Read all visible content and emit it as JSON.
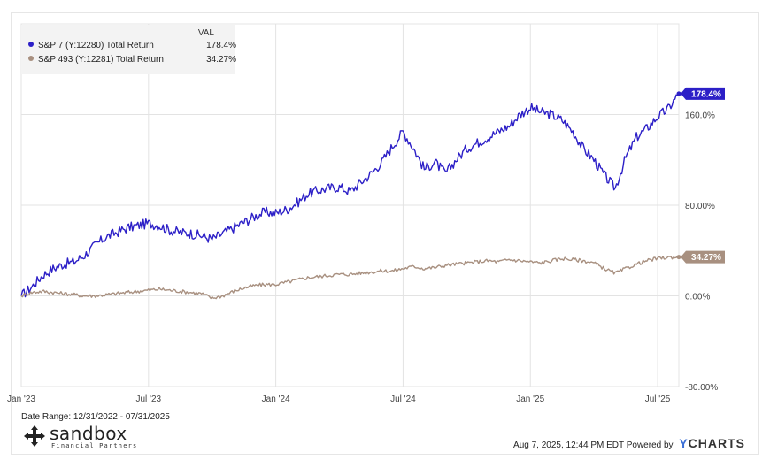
{
  "chart_data": {
    "type": "line",
    "x_ticks": [
      "Jan '23",
      "Jul '23",
      "Jan '24",
      "Jul '24",
      "Jan '25",
      "Jul '25"
    ],
    "y_ticks": [
      "160.0%",
      "80.00%",
      "0.00%",
      "-80.00%"
    ],
    "y_tick_values": [
      160,
      80,
      0,
      -80
    ],
    "ylim": [
      -80,
      240
    ],
    "x_range_months": [
      0,
      31
    ],
    "grid": true,
    "legend_position": "top-left",
    "legend_header": "VAL",
    "series": [
      {
        "name": "S&P 7 (Y:12280) Total Return",
        "color": "#2c1fc7",
        "end_label": "178.4%",
        "points": [
          [
            0,
            0
          ],
          [
            0.5,
            8
          ],
          [
            1,
            18
          ],
          [
            1.5,
            24
          ],
          [
            2,
            28
          ],
          [
            2.5,
            30
          ],
          [
            3,
            36
          ],
          [
            3.5,
            45
          ],
          [
            4,
            52
          ],
          [
            4.5,
            56
          ],
          [
            5,
            60
          ],
          [
            5.5,
            62
          ],
          [
            6,
            64
          ],
          [
            6.5,
            62
          ],
          [
            7,
            58
          ],
          [
            7.5,
            56
          ],
          [
            8,
            55
          ],
          [
            8.5,
            53
          ],
          [
            9,
            50
          ],
          [
            9.5,
            55
          ],
          [
            10,
            60
          ],
          [
            10.5,
            65
          ],
          [
            11,
            70
          ],
          [
            11.5,
            74
          ],
          [
            12,
            73
          ],
          [
            12.5,
            76
          ],
          [
            13,
            82
          ],
          [
            13.5,
            90
          ],
          [
            14,
            93
          ],
          [
            14.5,
            95
          ],
          [
            15,
            96
          ],
          [
            15.5,
            92
          ],
          [
            16,
            100
          ],
          [
            16.5,
            108
          ],
          [
            17,
            118
          ],
          [
            17.5,
            132
          ],
          [
            18,
            145
          ],
          [
            18.5,
            130
          ],
          [
            19,
            112
          ],
          [
            19.5,
            118
          ],
          [
            20,
            108
          ],
          [
            20.5,
            120
          ],
          [
            21,
            130
          ],
          [
            21.5,
            135
          ],
          [
            22,
            140
          ],
          [
            22.5,
            145
          ],
          [
            23,
            150
          ],
          [
            23.5,
            160
          ],
          [
            24,
            166
          ],
          [
            24.5,
            162
          ],
          [
            25,
            160
          ],
          [
            25.5,
            155
          ],
          [
            26,
            145
          ],
          [
            26.5,
            130
          ],
          [
            27,
            120
          ],
          [
            27.5,
            106
          ],
          [
            28,
            95
          ],
          [
            28.5,
            122
          ],
          [
            29,
            140
          ],
          [
            29.5,
            148
          ],
          [
            30,
            158
          ],
          [
            30.5,
            165
          ],
          [
            31,
            178.4
          ]
        ]
      },
      {
        "name": "S&P 493 (Y:12281) Total Return",
        "color": "#a89080",
        "end_label": "34.27%",
        "points": [
          [
            0,
            0
          ],
          [
            0.5,
            3
          ],
          [
            1,
            4
          ],
          [
            1.5,
            3
          ],
          [
            2,
            2
          ],
          [
            2.5,
            1
          ],
          [
            3,
            0
          ],
          [
            3.5,
            0
          ],
          [
            4,
            1
          ],
          [
            4.5,
            2
          ],
          [
            5,
            3
          ],
          [
            5.5,
            4
          ],
          [
            6,
            5
          ],
          [
            6.5,
            6
          ],
          [
            7,
            5
          ],
          [
            7.5,
            4
          ],
          [
            8,
            3
          ],
          [
            8.5,
            2
          ],
          [
            9,
            -2
          ],
          [
            9.5,
            0
          ],
          [
            10,
            4
          ],
          [
            10.5,
            7
          ],
          [
            11,
            9
          ],
          [
            11.5,
            10
          ],
          [
            12,
            10
          ],
          [
            12.5,
            12
          ],
          [
            13,
            14
          ],
          [
            13.5,
            16
          ],
          [
            14,
            17
          ],
          [
            14.5,
            18
          ],
          [
            15,
            19
          ],
          [
            15.5,
            19
          ],
          [
            16,
            20
          ],
          [
            16.5,
            21
          ],
          [
            17,
            22
          ],
          [
            17.5,
            22
          ],
          [
            18,
            24
          ],
          [
            18.5,
            26
          ],
          [
            19,
            24
          ],
          [
            19.5,
            25
          ],
          [
            20,
            27
          ],
          [
            20.5,
            28
          ],
          [
            21,
            29
          ],
          [
            21.5,
            30
          ],
          [
            22,
            31
          ],
          [
            22.5,
            30
          ],
          [
            23,
            32
          ],
          [
            23.5,
            31
          ],
          [
            24,
            30
          ],
          [
            24.5,
            29
          ],
          [
            25,
            31
          ],
          [
            25.5,
            33
          ],
          [
            26,
            32
          ],
          [
            26.5,
            31
          ],
          [
            27,
            29
          ],
          [
            27.5,
            24
          ],
          [
            28,
            20
          ],
          [
            28.5,
            24
          ],
          [
            29,
            28
          ],
          [
            29.5,
            31
          ],
          [
            30,
            33
          ],
          [
            30.5,
            34
          ],
          [
            31,
            34.27
          ]
        ]
      }
    ]
  },
  "legend": {
    "header": "VAL",
    "rows": [
      {
        "name": "S&P 7 (Y:12280) Total Return",
        "value": "178.4%"
      },
      {
        "name": "S&P 493 (Y:12281) Total Return",
        "value": "34.27%"
      }
    ]
  },
  "date_range": "Date Range: 12/31/2022 - 07/31/2025",
  "brand": {
    "name": "sandbox",
    "sub": "Financial Partners"
  },
  "footer": {
    "text": "Aug 7, 2025, 12:44 PM EDT Powered by",
    "logo_y": "Y",
    "logo_rest": "CHARTS"
  }
}
